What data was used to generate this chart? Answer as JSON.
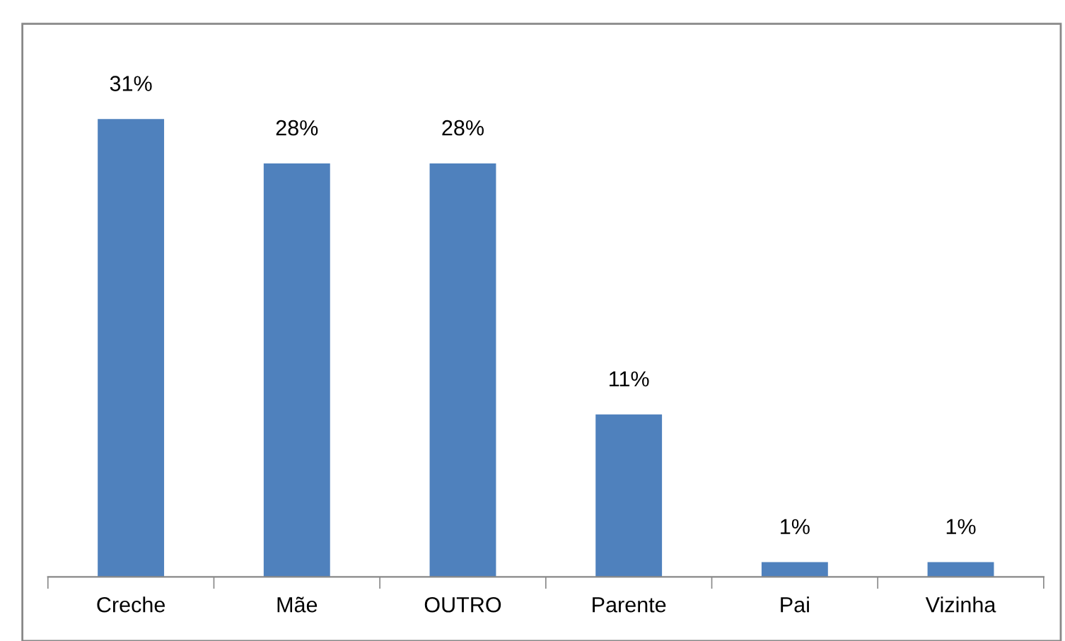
{
  "chart_data": {
    "type": "bar",
    "categories": [
      "Creche",
      "Mãe",
      "OUTRO",
      "Parente",
      "Pai",
      "Vizinha"
    ],
    "values": [
      31,
      28,
      28,
      11,
      1,
      1
    ],
    "value_labels": [
      "31%",
      "28%",
      "28%",
      "11%",
      "1%",
      "1%"
    ],
    "color": "#4f81bd"
  }
}
